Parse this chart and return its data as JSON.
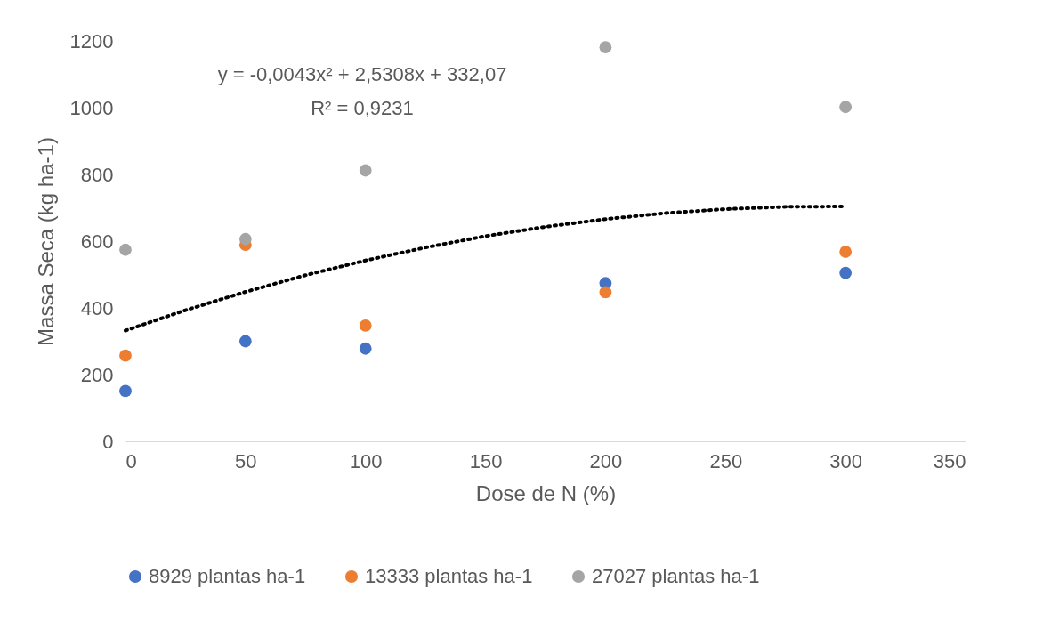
{
  "chart_data": {
    "type": "scatter",
    "xlabel": "Dose de N (%)",
    "ylabel": "Massa Seca (kg ha-1)",
    "x": [
      0,
      50,
      100,
      200,
      300
    ],
    "series": [
      {
        "name": "8929 plantas ha-1",
        "color": "#4472c4",
        "values": [
          151,
          300,
          278,
          474,
          505
        ]
      },
      {
        "name": "13333 plantas ha-1",
        "color": "#ed7d31",
        "values": [
          257,
          589,
          347,
          447,
          568
        ]
      },
      {
        "name": "27027 plantas ha-1",
        "color": "#a5a5a5",
        "values": [
          574,
          606,
          812,
          1181,
          1002
        ]
      },
      {
        "type": "line",
        "color": "#000000",
        "line_style": "dotted",
        "marker": "none",
        "x": [
          0,
          25,
          50,
          75,
          100,
          125,
          150,
          175,
          200,
          225,
          250,
          275,
          300
        ],
        "values": [
          332,
          393,
          448,
          498,
          542,
          581,
          615,
          643,
          666,
          684,
          696,
          703,
          704
        ]
      }
    ],
    "annotations": [
      "y = -0,0043x² + 2,5308x  + 332,07",
      "R² = 0,9231"
    ],
    "xlim": [
      0,
      350
    ],
    "xticks": [
      0,
      50,
      100,
      150,
      200,
      250,
      300,
      350
    ],
    "ylim": [
      0,
      1200
    ],
    "yticks": [
      0,
      200,
      400,
      600,
      800,
      1000,
      1200
    ],
    "grid": false,
    "legend": "bottom",
    "marker": "circle"
  }
}
